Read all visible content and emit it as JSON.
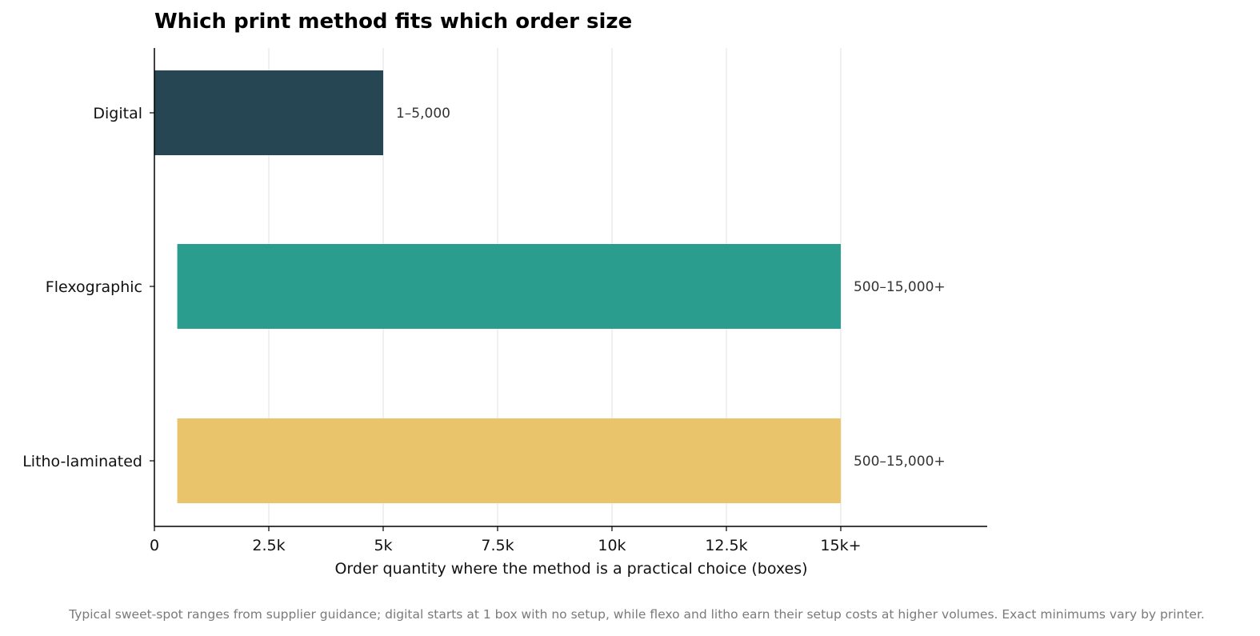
{
  "chart_data": {
    "type": "bar",
    "orientation": "horizontal",
    "title": "Which print method fits which order size",
    "xlabel": "Order quantity where the method is a practical choice (boxes)",
    "ylabel": "",
    "xlim": [
      0,
      18200
    ],
    "grid": "vertical",
    "legend": "none",
    "x_ticks": [
      {
        "value": 0,
        "label": "0"
      },
      {
        "value": 2500,
        "label": "2.5k"
      },
      {
        "value": 5000,
        "label": "5k"
      },
      {
        "value": 7500,
        "label": "7.5k"
      },
      {
        "value": 10000,
        "label": "10k"
      },
      {
        "value": 12500,
        "label": "12.5k"
      },
      {
        "value": 15000,
        "label": "15k+"
      }
    ],
    "categories": [
      "Digital",
      "Flexographic",
      "Litho-laminated"
    ],
    "ranges": [
      {
        "category": "Digital",
        "start": 1,
        "end": 5000,
        "label": "1–5,000",
        "color": "#264653"
      },
      {
        "category": "Flexographic",
        "start": 500,
        "end": 15000,
        "label": "500–15,000+",
        "color": "#2a9d8f"
      },
      {
        "category": "Litho-laminated",
        "start": 500,
        "end": 15000,
        "label": "500–15,000+",
        "color": "#e9c46a"
      }
    ],
    "footnote": "Typical sweet-spot ranges from supplier guidance; digital starts at 1 box with no setup, while flexo and litho earn their setup costs at higher volumes. Exact minimums vary by printer."
  }
}
